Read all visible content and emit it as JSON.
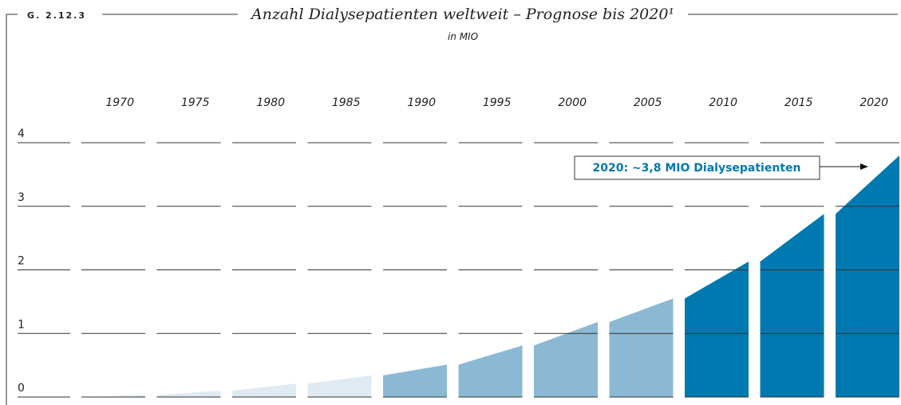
{
  "chart_data": {
    "type": "area-columns",
    "figure_label": "G. 2.12.3",
    "title": "Anzahl Dialysepatienten weltweit – Prognose bis 2020¹",
    "subtitle": "in MIO",
    "annotation": "2020: ~3,8 MIO Dialysepatienten",
    "categories": [
      "1970",
      "1975",
      "1980",
      "1985",
      "1990",
      "1995",
      "2000",
      "2005",
      "2010",
      "2015",
      "2020"
    ],
    "values": [
      0.03,
      0.1,
      0.21,
      0.34,
      0.51,
      0.81,
      1.18,
      1.55,
      2.13,
      2.88,
      3.8
    ],
    "colors": [
      "#dfeaf3",
      "#dfeaf3",
      "#dfeaf3",
      "#dfeaf3",
      "#8bb9d3",
      "#8bb9d3",
      "#8bb9d3",
      "#8bb9d3",
      "#0079b0",
      "#0079b0",
      "#0079b0"
    ],
    "ylim": [
      0,
      4
    ],
    "yticks": [
      0,
      1,
      2,
      3,
      4
    ],
    "grid": true
  }
}
